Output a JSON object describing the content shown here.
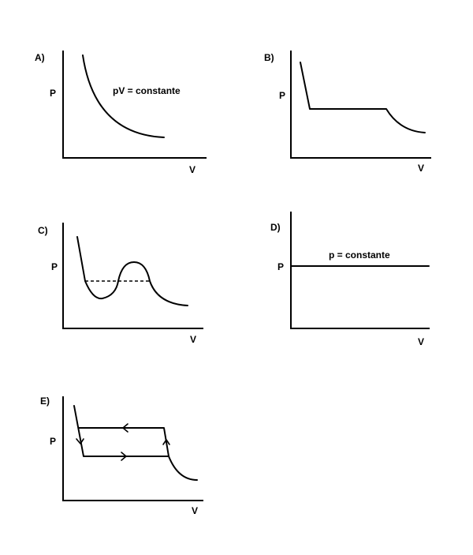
{
  "panels": {
    "a": {
      "letter": "A)",
      "ylabel": "P",
      "xlabel": "V",
      "annotation": "pV = constante"
    },
    "b": {
      "letter": "B)",
      "ylabel": "P",
      "xlabel": "V"
    },
    "c": {
      "letter": "C)",
      "ylabel": "P",
      "xlabel": "V"
    },
    "d": {
      "letter": "D)",
      "ylabel": "P",
      "xlabel": "V",
      "annotation": "p = constante"
    },
    "e": {
      "letter": "E)",
      "ylabel": "P",
      "xlabel": "V"
    }
  }
}
